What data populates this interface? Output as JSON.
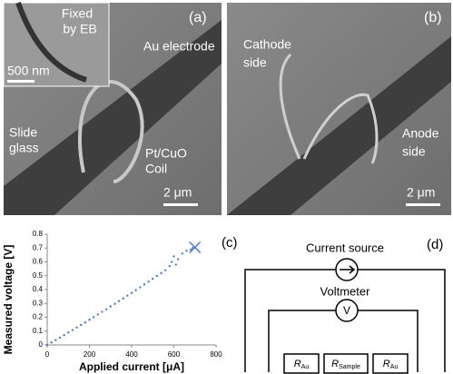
{
  "panel_a": {
    "label": "(a)",
    "inset_top": "Fixed",
    "inset_bottom": "by EB",
    "inset_scale": "500 nm",
    "electrode": "Au electrode",
    "glass_top": "Slide",
    "glass_bottom": "glass",
    "coil_top": "Pt/CuO",
    "coil_bottom": "Coil",
    "scale": "2 μm"
  },
  "panel_b": {
    "label": "(b)",
    "cathode_top": "Cathode",
    "cathode_bottom": "side",
    "anode_top": "Anode",
    "anode_bottom": "side",
    "scale": "2 μm"
  },
  "chart_data": {
    "type": "scatter",
    "label": "(c)",
    "x_label": "Applied current [μA]",
    "y_label": "Measured voltage [V]",
    "color": "#4a7bc8",
    "x": [
      0,
      20,
      40,
      60,
      80,
      100,
      120,
      140,
      160,
      180,
      200,
      220,
      240,
      260,
      280,
      300,
      320,
      340,
      360,
      380,
      400,
      420,
      440,
      460,
      480,
      500,
      520,
      540,
      560,
      580,
      590,
      600,
      610,
      620,
      640,
      660,
      680,
      690
    ],
    "y": [
      0,
      0.018,
      0.035,
      0.053,
      0.071,
      0.09,
      0.108,
      0.126,
      0.145,
      0.163,
      0.182,
      0.201,
      0.22,
      0.239,
      0.258,
      0.278,
      0.297,
      0.317,
      0.336,
      0.356,
      0.376,
      0.396,
      0.416,
      0.437,
      0.457,
      0.478,
      0.498,
      0.519,
      0.54,
      0.57,
      0.6,
      0.64,
      0.58,
      0.62,
      0.66,
      0.68,
      0.69,
      0.7
    ],
    "end_point": {
      "x": 700,
      "y": 0.705
    },
    "xlim": [
      0,
      800
    ],
    "ylim": [
      0,
      0.8
    ],
    "xticks": [
      0,
      200,
      400,
      600,
      800
    ],
    "yticks": [
      0,
      0.1,
      0.2,
      0.3,
      0.4,
      0.5,
      0.6,
      0.7,
      0.8
    ]
  },
  "panel_d": {
    "label": "(d)",
    "source": "Current source",
    "voltmeter": "Voltmeter",
    "meter_symbol": "V",
    "resistors": [
      {
        "symbol": "R",
        "subscript": "Au"
      },
      {
        "symbol": "R",
        "subscript": "Sample"
      },
      {
        "symbol": "R",
        "subscript": "Au"
      }
    ]
  }
}
